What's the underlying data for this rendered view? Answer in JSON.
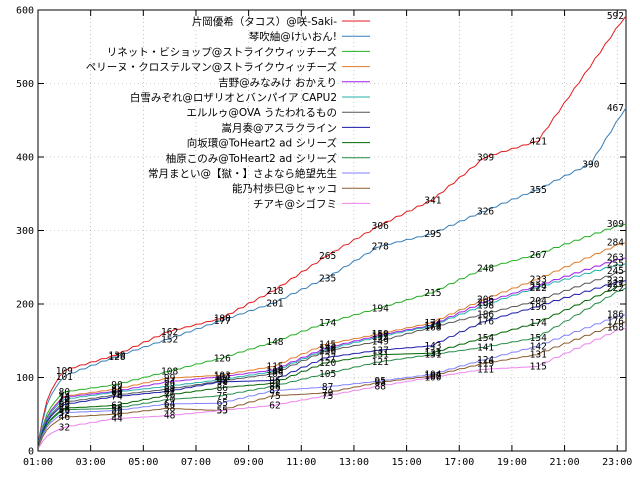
{
  "chart_data": {
    "type": "line",
    "title": "",
    "xlabel": "",
    "ylabel": "",
    "grid": true,
    "legend_placement": "top-center",
    "xlim": [
      60,
      1400
    ],
    "ylim": [
      0,
      600
    ],
    "x_ticks": [
      {
        "value": 60,
        "label": "01:00"
      },
      {
        "value": 180,
        "label": "03:00"
      },
      {
        "value": 300,
        "label": "05:00"
      },
      {
        "value": 420,
        "label": "07:00"
      },
      {
        "value": 540,
        "label": "09:00"
      },
      {
        "value": 660,
        "label": "11:00"
      },
      {
        "value": 780,
        "label": "13:00"
      },
      {
        "value": 900,
        "label": "15:00"
      },
      {
        "value": 1020,
        "label": "17:00"
      },
      {
        "value": 1140,
        "label": "19:00"
      },
      {
        "value": 1260,
        "label": "21:00"
      },
      {
        "value": 1380,
        "label": "23:00"
      }
    ],
    "y_ticks": [
      0,
      100,
      200,
      300,
      400,
      500,
      600
    ],
    "label_x": [
      120,
      240,
      360,
      480,
      600,
      720,
      840,
      960,
      1080,
      1200,
      1320,
      1400
    ],
    "series": [
      {
        "name": "片岡優希（タコス）@咲-Saki-",
        "color": "#e41a1c",
        "values": [
          109,
          130,
          162,
          180,
          218,
          265,
          306,
          341,
          399,
          421,
          592
        ]
      },
      {
        "name": "琴吹紬@けいおん!",
        "color": "#377eb8",
        "values": [
          101,
          128,
          152,
          177,
          201,
          235,
          278,
          295,
          326,
          355,
          390,
          467
        ]
      },
      {
        "name": "リネット・ビショップ@ストライクウィッチーズ",
        "color": "#22b022",
        "values": [
          80,
          90,
          108,
          126,
          148,
          174,
          194,
          215,
          248,
          267,
          309
        ]
      },
      {
        "name": "ペリーヌ・クロステルマン@ストライクウィッチーズ",
        "color": "#e07b2a",
        "values": [
          74,
          84,
          99,
          103,
          115,
          145,
          159,
          174,
          206,
          233,
          284
        ]
      },
      {
        "name": "吉野@みなみけ おかえり",
        "color": "#a020f0",
        "values": [
          73,
          81,
          94,
          101,
          110,
          140,
          157,
          171,
          202,
          224,
          263
        ]
      },
      {
        "name": "白雪みぞれ@ロザリオとバンパイア CAPU2",
        "color": "#20b2aa",
        "values": [
          70,
          80,
          88,
          97,
          108,
          138,
          155,
          170,
          198,
          222,
          255
        ]
      },
      {
        "name": "エルルゥ@OVA うたわれるもの",
        "color": "#555555",
        "values": [
          66,
          76,
          84,
          95,
          105,
          136,
          149,
          168,
          186,
          204,
          245
        ]
      },
      {
        "name": "嵩月奏@アスラクライン",
        "color": "#1a1aaa",
        "values": [
          63,
          74,
          81,
          94,
          96,
          127,
          137,
          143,
          176,
          196,
          232
        ]
      },
      {
        "name": "向坂環@ToHeart2 ad シリーズ",
        "color": "#006400",
        "values": [
          58,
          62,
          76,
          86,
          92,
          120,
          131,
          133,
          154,
          174,
          227
        ]
      },
      {
        "name": "柚原このみ@ToHeart2 ad シリーズ",
        "color": "#238b45",
        "values": [
          56,
          58,
          70,
          75,
          88,
          105,
          121,
          131,
          141,
          154,
          222
        ]
      },
      {
        "name": "常月まとい@【獄・】さよなら絶望先生",
        "color": "#8080ff",
        "values": [
          52,
          55,
          64,
          65,
          82,
          87,
          95,
          104,
          124,
          142,
          186
        ]
      },
      {
        "name": "能乃村歩巳@ヒャッコ",
        "color": "#8b5a2b",
        "values": [
          46,
          50,
          58,
          55,
          75,
          79,
          93,
          102,
          119,
          131,
          176
        ]
      },
      {
        "name": "チアキ@シゴフミ",
        "color": "#ee82ee",
        "values": [
          32,
          44,
          48,
          55,
          62,
          75,
          88,
          100,
          111,
          115,
          168
        ]
      }
    ]
  }
}
